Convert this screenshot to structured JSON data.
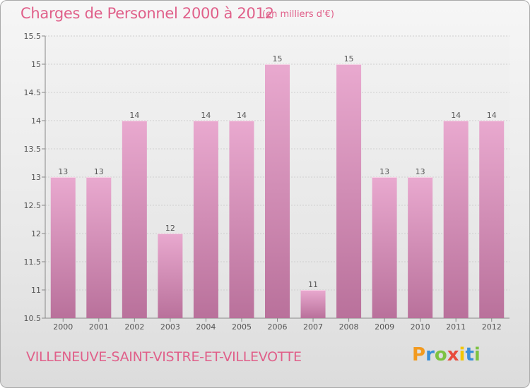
{
  "title": "Charges de Personnel 2000 à 2012",
  "unit": "(en milliers d'€)",
  "town": "VILLENEUVE-SAINT-VISTRE-ET-VILLEVOTTE",
  "logo": {
    "letters": [
      "P",
      "r",
      "o",
      "x",
      "i",
      "t",
      "i"
    ],
    "colors": [
      "#f29a1f",
      "#3a8fd8",
      "#7dc242",
      "#e84c3d",
      "#f2c500",
      "#3a8fd8",
      "#7dc242"
    ]
  },
  "colors": {
    "bar_light": "#e9a9cf",
    "bar_dark": "#b9719b",
    "text_accent": "#e0608a"
  },
  "chart_data": {
    "type": "bar",
    "categories": [
      "2000",
      "2001",
      "2002",
      "2003",
      "2004",
      "2005",
      "2006",
      "2007",
      "2008",
      "2009",
      "2010",
      "2011",
      "2012"
    ],
    "values": [
      13,
      13,
      14,
      12,
      14,
      14,
      15,
      11,
      15,
      13,
      13,
      14,
      14
    ],
    "value_labels": [
      "13",
      "13",
      "14",
      "12",
      "14",
      "14",
      "15",
      "11",
      "15",
      "13",
      "13",
      "14",
      "14"
    ],
    "ylim": [
      10.5,
      15.5
    ],
    "yticks": [
      10.5,
      11,
      11.5,
      12,
      12.5,
      13,
      13.5,
      14,
      14.5,
      15,
      15.5
    ],
    "ytick_labels": [
      "10.5",
      "11",
      "11.5",
      "12",
      "12.5",
      "13",
      "13.5",
      "14",
      "14.5",
      "15",
      "15.5"
    ],
    "grid": true
  }
}
